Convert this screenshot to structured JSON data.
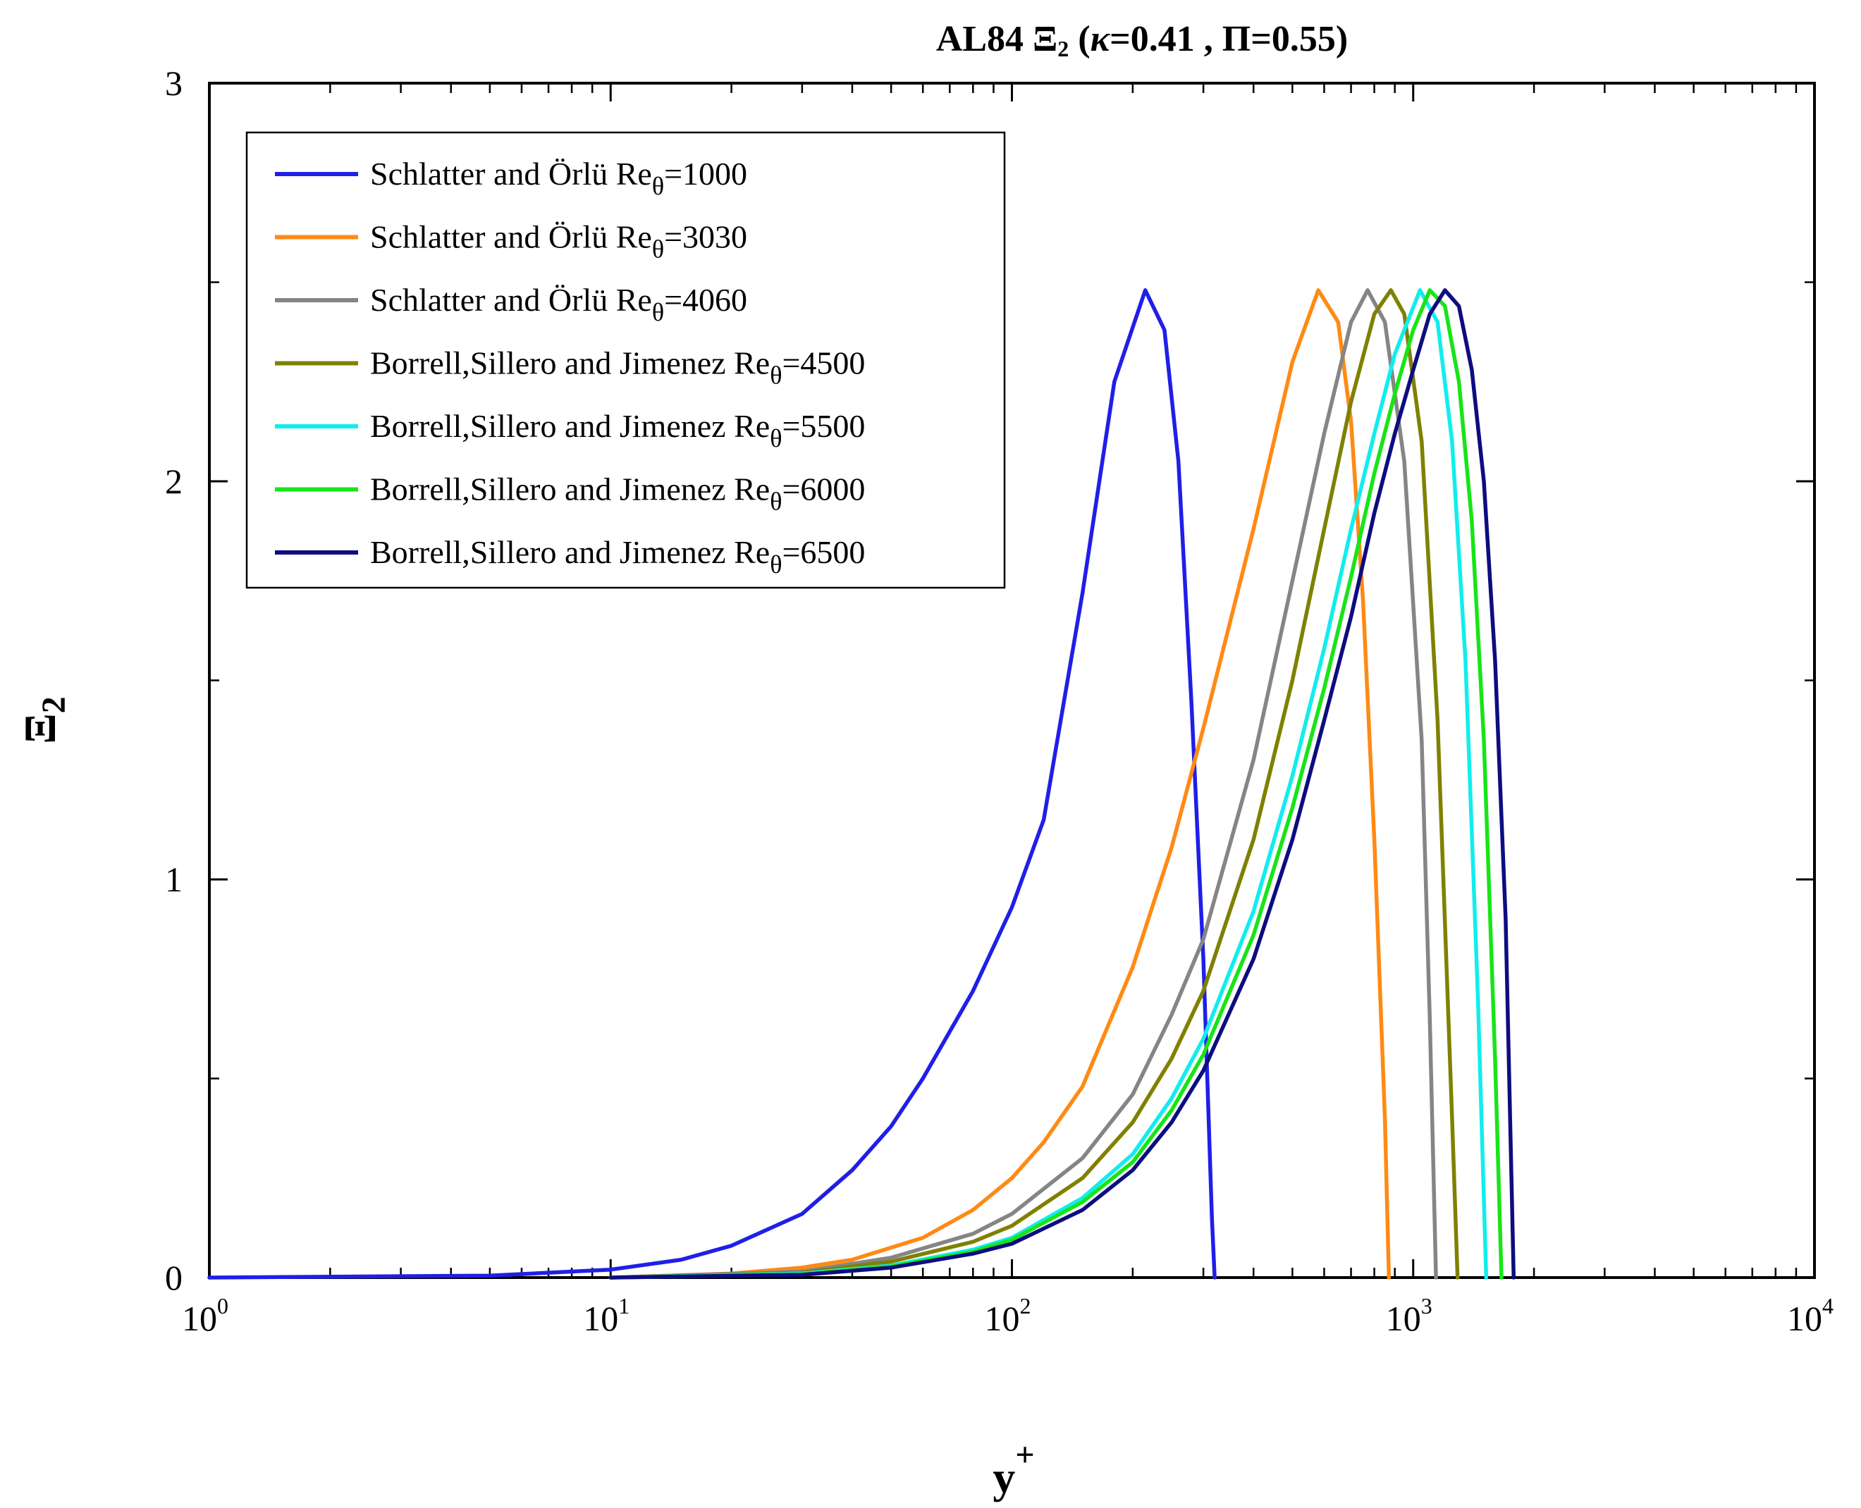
{
  "chart_data": {
    "type": "line",
    "title": {
      "prefix": "AL84 Ξ",
      "sub": "2",
      "kappa_symbol": "κ",
      "params": "=0.41 , Π=0.55)",
      "open_paren": " ("
    },
    "xlabel": {
      "base": "y",
      "sup": "+"
    },
    "ylabel": {
      "base": "Ξ",
      "sub": "2"
    },
    "xscale": "log",
    "xlim": [
      1,
      10000
    ],
    "ylim": [
      0,
      3
    ],
    "x_ticks": [
      {
        "base": "10",
        "exp": "0",
        "value": 1
      },
      {
        "base": "10",
        "exp": "1",
        "value": 10
      },
      {
        "base": "10",
        "exp": "2",
        "value": 100
      },
      {
        "base": "10",
        "exp": "3",
        "value": 1000
      },
      {
        "base": "10",
        "exp": "4",
        "value": 10000
      }
    ],
    "y_ticks": [
      {
        "label": "0",
        "value": 0
      },
      {
        "label": "1",
        "value": 1
      },
      {
        "label": "2",
        "value": 2
      },
      {
        "label": "3",
        "value": 3
      }
    ],
    "y_minor_ticks": [
      0.5,
      1.5,
      2.5
    ],
    "grid": false,
    "legend_position": "top-left",
    "series": [
      {
        "name": "Schlatter and Örlü Re",
        "sub": "θ",
        "re": "=1000",
        "color": "#1f1fe8",
        "x": [
          1,
          5,
          10,
          15,
          20,
          30,
          40,
          50,
          60,
          80,
          100,
          120,
          150,
          180,
          215,
          240,
          260,
          280,
          300,
          315,
          320
        ],
        "y": [
          0,
          0.005,
          0.02,
          0.045,
          0.08,
          0.16,
          0.27,
          0.38,
          0.5,
          0.72,
          0.93,
          1.15,
          1.72,
          2.25,
          2.48,
          2.38,
          2.05,
          1.45,
          0.8,
          0.15,
          0
        ]
      },
      {
        "name": "Schlatter and Örlü Re",
        "sub": "θ",
        "re": "=3030",
        "color": "#ff8a14",
        "x": [
          10,
          20,
          30,
          40,
          60,
          80,
          100,
          120,
          150,
          200,
          250,
          300,
          400,
          500,
          580,
          650,
          700,
          750,
          800,
          850,
          870
        ],
        "y": [
          0,
          0.01,
          0.025,
          0.045,
          0.1,
          0.17,
          0.25,
          0.34,
          0.48,
          0.78,
          1.08,
          1.38,
          1.88,
          2.3,
          2.48,
          2.4,
          2.15,
          1.7,
          1.1,
          0.4,
          0
        ]
      },
      {
        "name": "Schlatter and Örlü Re",
        "sub": "θ",
        "re": "=4060",
        "color": "#858585",
        "x": [
          10,
          30,
          50,
          80,
          100,
          150,
          200,
          250,
          300,
          400,
          500,
          600,
          700,
          770,
          850,
          950,
          1050,
          1100,
          1140
        ],
        "y": [
          0,
          0.015,
          0.05,
          0.11,
          0.16,
          0.3,
          0.46,
          0.66,
          0.85,
          1.3,
          1.75,
          2.12,
          2.4,
          2.48,
          2.4,
          2.05,
          1.35,
          0.65,
          0
        ]
      },
      {
        "name": "Borrell,Sillero and Jimenez Re",
        "sub": "θ",
        "re": "=4500",
        "color": "#808000",
        "x": [
          10,
          30,
          50,
          80,
          100,
          150,
          200,
          250,
          300,
          400,
          500,
          600,
          700,
          800,
          880,
          950,
          1050,
          1150,
          1250,
          1290
        ],
        "y": [
          0,
          0.012,
          0.04,
          0.09,
          0.13,
          0.25,
          0.39,
          0.55,
          0.72,
          1.1,
          1.5,
          1.88,
          2.2,
          2.42,
          2.48,
          2.42,
          2.1,
          1.4,
          0.4,
          0
        ]
      },
      {
        "name": "Borrell,Sillero and Jimenez Re",
        "sub": "θ",
        "re": "=5500",
        "color": "#11eded",
        "x": [
          10,
          30,
          50,
          80,
          100,
          150,
          200,
          250,
          300,
          400,
          500,
          600,
          700,
          800,
          900,
          1040,
          1150,
          1250,
          1350,
          1450,
          1520
        ],
        "y": [
          0,
          0.01,
          0.03,
          0.07,
          0.1,
          0.2,
          0.31,
          0.45,
          0.6,
          0.92,
          1.26,
          1.58,
          1.88,
          2.12,
          2.32,
          2.48,
          2.4,
          2.1,
          1.55,
          0.7,
          0
        ]
      },
      {
        "name": "Borrell,Sillero and Jimenez Re",
        "sub": "θ",
        "re": "=6000",
        "color": "#18e418",
        "x": [
          10,
          30,
          50,
          80,
          100,
          150,
          200,
          250,
          300,
          400,
          500,
          600,
          700,
          800,
          900,
          1000,
          1100,
          1200,
          1300,
          1400,
          1500,
          1600,
          1660
        ],
        "y": [
          0,
          0.008,
          0.028,
          0.065,
          0.095,
          0.19,
          0.29,
          0.42,
          0.56,
          0.86,
          1.18,
          1.48,
          1.76,
          2.02,
          2.22,
          2.38,
          2.48,
          2.44,
          2.25,
          1.9,
          1.35,
          0.55,
          0
        ]
      },
      {
        "name": "Borrell,Sillero and Jimenez Re",
        "sub": "θ",
        "re": "=6500",
        "color": "#0d0d80",
        "x": [
          10,
          30,
          50,
          80,
          100,
          150,
          200,
          250,
          300,
          400,
          500,
          600,
          700,
          800,
          900,
          1000,
          1100,
          1200,
          1300,
          1400,
          1500,
          1600,
          1700,
          1780
        ],
        "y": [
          0,
          0.007,
          0.025,
          0.06,
          0.085,
          0.17,
          0.27,
          0.39,
          0.52,
          0.8,
          1.1,
          1.4,
          1.66,
          1.92,
          2.12,
          2.28,
          2.42,
          2.48,
          2.44,
          2.28,
          2.0,
          1.55,
          0.9,
          0
        ]
      }
    ]
  }
}
